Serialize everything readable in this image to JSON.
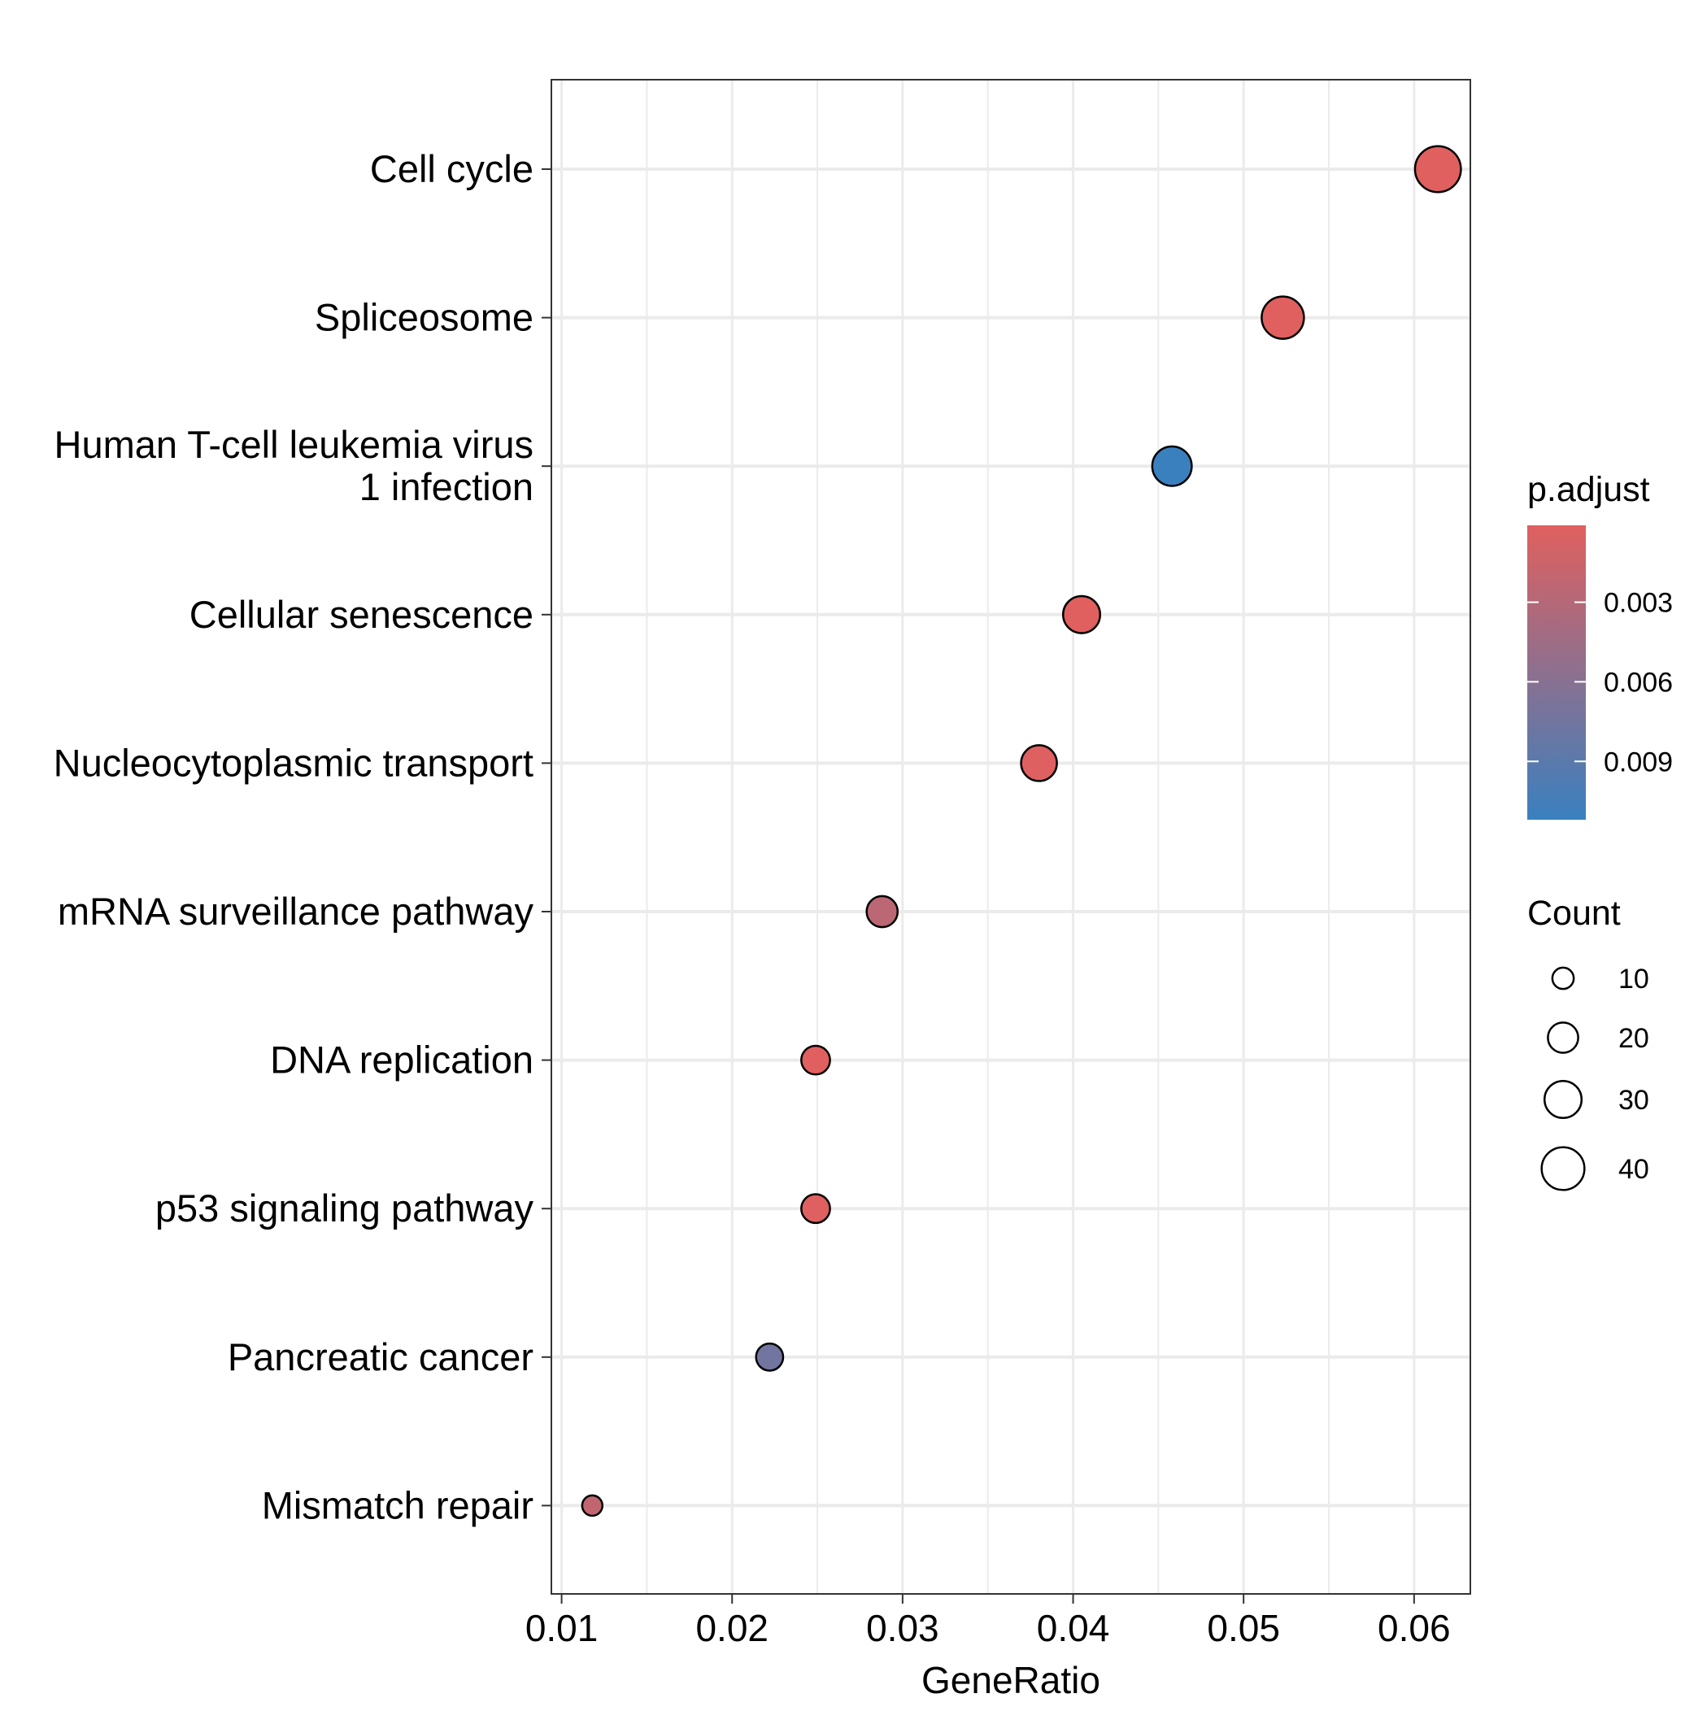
{
  "chart_data": {
    "type": "scatter",
    "xlabel": "GeneRatio",
    "ylabel": "",
    "xlim": [
      0.0094,
      0.0633
    ],
    "x_ticks": [
      0.01,
      0.02,
      0.03,
      0.04,
      0.05,
      0.06
    ],
    "x_tick_labels": [
      "0.01",
      "0.02",
      "0.03",
      "0.04",
      "0.05",
      "0.06"
    ],
    "grid": true,
    "categories": [
      [
        "Cell cycle"
      ],
      [
        "Spliceosome"
      ],
      [
        "Human T-cell leukemia virus",
        "1 infection"
      ],
      [
        "Cellular senescence"
      ],
      [
        "Nucleocytoplasmic transport"
      ],
      [
        "mRNA surveillance pathway"
      ],
      [
        "DNA replication"
      ],
      [
        "p53 signaling pathway"
      ],
      [
        "Pancreatic cancer"
      ],
      [
        "Mismatch repair"
      ]
    ],
    "points": [
      {
        "gene_ratio": 0.0614,
        "count": 46,
        "p_adjust": 0.0001
      },
      {
        "gene_ratio": 0.0523,
        "count": 39,
        "p_adjust": 0.0001
      },
      {
        "gene_ratio": 0.0458,
        "count": 34,
        "p_adjust": 0.0112
      },
      {
        "gene_ratio": 0.0405,
        "count": 30,
        "p_adjust": 0.0001
      },
      {
        "gene_ratio": 0.038,
        "count": 28,
        "p_adjust": 0.0002
      },
      {
        "gene_ratio": 0.0288,
        "count": 21,
        "p_adjust": 0.0025
      },
      {
        "gene_ratio": 0.0249,
        "count": 18,
        "p_adjust": 0.0001
      },
      {
        "gene_ratio": 0.0249,
        "count": 18,
        "p_adjust": 0.0002
      },
      {
        "gene_ratio": 0.0222,
        "count": 16,
        "p_adjust": 0.0075
      },
      {
        "gene_ratio": 0.0118,
        "count": 9,
        "p_adjust": 0.0022
      }
    ],
    "legend": {
      "position": "right",
      "color": {
        "title": "p.adjust",
        "range": [
          0.0001,
          0.0112
        ],
        "ticks": [
          0.003,
          0.006,
          0.009
        ],
        "tick_labels": [
          "0.003",
          "0.006",
          "0.009"
        ],
        "low_color": "#E0605F",
        "high_color": "#3A80BF"
      },
      "size": {
        "title": "Count",
        "values": [
          10,
          20,
          30,
          40
        ],
        "labels": [
          "10",
          "20",
          "30",
          "40"
        ]
      }
    }
  }
}
